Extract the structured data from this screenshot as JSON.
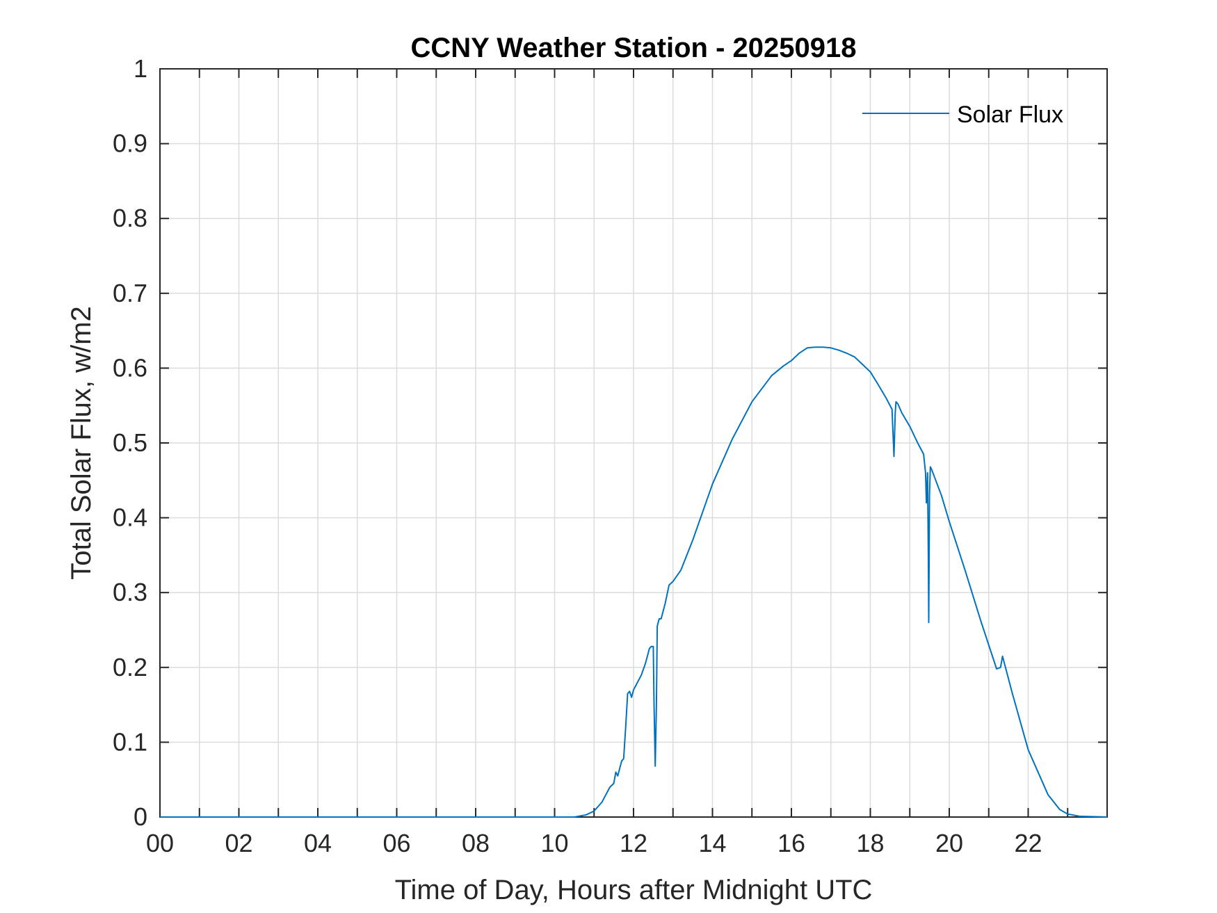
{
  "chart_data": {
    "type": "line",
    "title": "CCNY Weather Station - 20250918",
    "xlabel": "Time of Day, Hours after Midnight UTC",
    "ylabel": "Total Solar Flux, w/m2",
    "xlim": [
      0,
      24
    ],
    "ylim": [
      0,
      1
    ],
    "x_ticks": [
      0,
      2,
      4,
      6,
      8,
      10,
      12,
      14,
      16,
      18,
      20,
      22
    ],
    "x_tick_labels": [
      "00",
      "02",
      "04",
      "06",
      "08",
      "10",
      "12",
      "14",
      "16",
      "18",
      "20",
      "22"
    ],
    "y_ticks": [
      0,
      0.1,
      0.2,
      0.3,
      0.4,
      0.5,
      0.6,
      0.7,
      0.8,
      0.9,
      1
    ],
    "y_tick_labels": [
      "0",
      "0.1",
      "0.2",
      "0.3",
      "0.4",
      "0.5",
      "0.6",
      "0.7",
      "0.8",
      "0.9",
      "1"
    ],
    "grid": true,
    "legend_position": "top-right",
    "series": [
      {
        "name": "Solar Flux",
        "color": "#0072BD",
        "x": [
          0,
          10.5,
          10.8,
          11.0,
          11.2,
          11.4,
          11.5,
          11.55,
          11.6,
          11.65,
          11.7,
          11.75,
          11.8,
          11.85,
          11.9,
          11.95,
          12.0,
          12.1,
          12.2,
          12.3,
          12.35,
          12.4,
          12.45,
          12.5,
          12.52,
          12.55,
          12.58,
          12.6,
          12.65,
          12.7,
          12.8,
          12.9,
          13.0,
          13.2,
          13.5,
          14.0,
          14.5,
          15.0,
          15.5,
          15.8,
          16.0,
          16.2,
          16.4,
          16.6,
          16.8,
          17.0,
          17.2,
          17.4,
          17.6,
          17.8,
          18.0,
          18.2,
          18.4,
          18.55,
          18.6,
          18.63,
          18.65,
          18.7,
          18.8,
          19.0,
          19.2,
          19.35,
          19.4,
          19.42,
          19.45,
          19.47,
          19.48,
          19.5,
          19.52,
          19.55,
          19.6,
          19.8,
          20.0,
          20.4,
          20.8,
          21.2,
          21.3,
          21.35,
          21.4,
          21.6,
          22.0,
          22.5,
          22.8,
          23.0,
          23.3,
          24.0
        ],
        "y": [
          0,
          0,
          0.003,
          0.008,
          0.02,
          0.04,
          0.045,
          0.06,
          0.055,
          0.065,
          0.075,
          0.078,
          0.12,
          0.165,
          0.168,
          0.16,
          0.17,
          0.18,
          0.19,
          0.205,
          0.215,
          0.225,
          0.228,
          0.228,
          0.15,
          0.068,
          0.15,
          0.255,
          0.265,
          0.265,
          0.285,
          0.31,
          0.315,
          0.33,
          0.37,
          0.445,
          0.505,
          0.555,
          0.59,
          0.603,
          0.61,
          0.62,
          0.627,
          0.628,
          0.628,
          0.627,
          0.624,
          0.62,
          0.615,
          0.605,
          0.595,
          0.578,
          0.56,
          0.545,
          0.482,
          0.54,
          0.555,
          0.552,
          0.54,
          0.522,
          0.5,
          0.485,
          0.46,
          0.42,
          0.46,
          0.35,
          0.26,
          0.43,
          0.468,
          0.465,
          0.458,
          0.43,
          0.395,
          0.33,
          0.262,
          0.198,
          0.2,
          0.215,
          0.205,
          0.165,
          0.09,
          0.03,
          0.01,
          0.004,
          0.001,
          0
        ]
      }
    ]
  }
}
